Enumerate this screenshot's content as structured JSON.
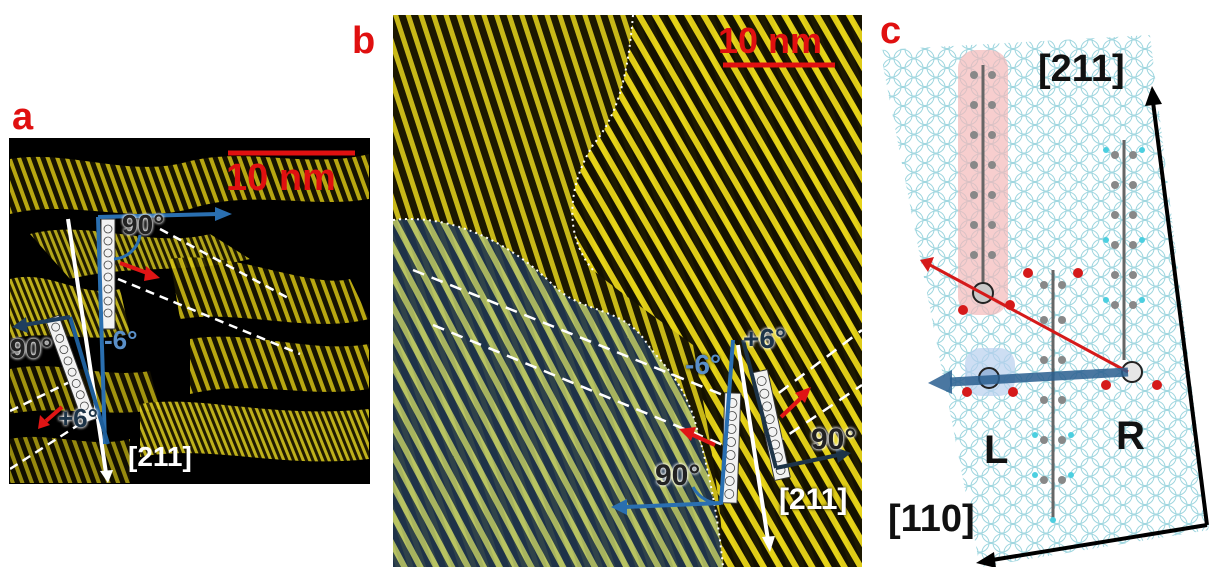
{
  "panels": {
    "a": {
      "letter": "a",
      "scale_label": "10 nm",
      "angle_top": "90°",
      "angle_left": "90°",
      "angle_neg": "-6°",
      "angle_pos": "+6°",
      "direction": "[211]"
    },
    "b": {
      "letter": "b",
      "scale_label": "10 nm",
      "angle_neg": "-6°",
      "angle_pos": "+6°",
      "angle_left": "90°",
      "angle_right": "90°",
      "direction": "[211]"
    },
    "c": {
      "letter": "c",
      "direction_211": "[211]",
      "direction_110": "[110]",
      "label_L": "L",
      "label_R": "R"
    }
  },
  "colors": {
    "label_red": "#e01010",
    "stm_yellow": "#e6d21a",
    "blue_arrow": "#2a6fb0",
    "red_arrow": "#e01515",
    "substrate_cyan": "#bfe8ef"
  }
}
